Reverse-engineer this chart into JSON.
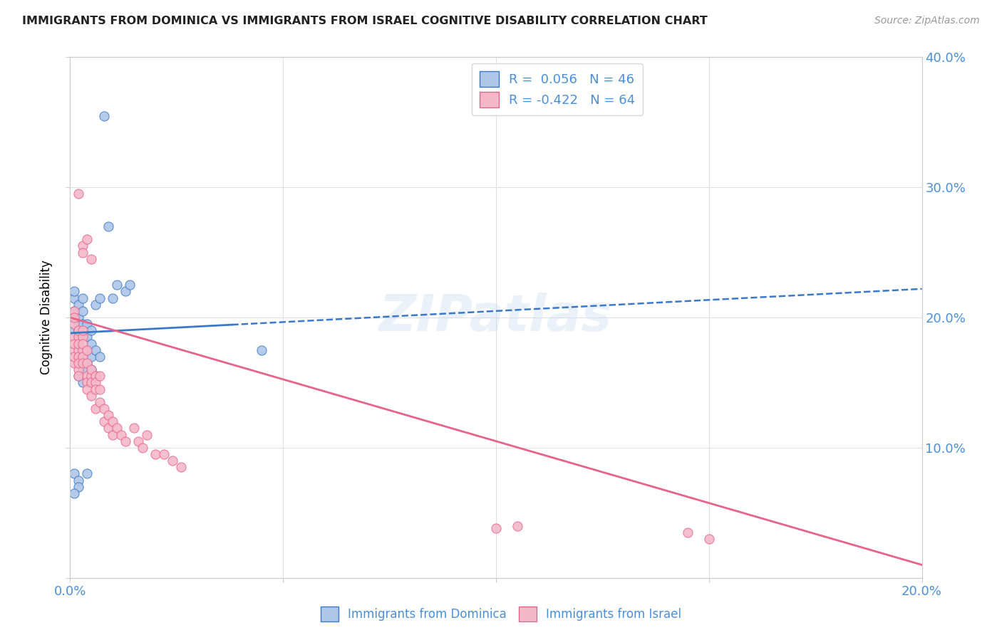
{
  "title": "IMMIGRANTS FROM DOMINICA VS IMMIGRANTS FROM ISRAEL COGNITIVE DISABILITY CORRELATION CHART",
  "source": "Source: ZipAtlas.com",
  "ylabel": "Cognitive Disability",
  "xlim": [
    0.0,
    0.2
  ],
  "ylim": [
    0.0,
    0.4
  ],
  "dominica_color": "#aec6e8",
  "israel_color": "#f5b8c8",
  "dominica_line_color": "#3a78c9",
  "israel_line_color": "#e8638a",
  "R_dominica": 0.056,
  "N_dominica": 46,
  "R_israel": -0.422,
  "N_israel": 64,
  "dominica_x": [
    0.001,
    0.001,
    0.001,
    0.001,
    0.001,
    0.002,
    0.002,
    0.002,
    0.002,
    0.002,
    0.002,
    0.002,
    0.003,
    0.003,
    0.003,
    0.003,
    0.003,
    0.003,
    0.004,
    0.004,
    0.004,
    0.004,
    0.005,
    0.005,
    0.005,
    0.005,
    0.006,
    0.006,
    0.007,
    0.007,
    0.008,
    0.009,
    0.01,
    0.011,
    0.013,
    0.014,
    0.003,
    0.002,
    0.003,
    0.001,
    0.002,
    0.004,
    0.006,
    0.045,
    0.002,
    0.001
  ],
  "dominica_y": [
    0.19,
    0.205,
    0.215,
    0.22,
    0.2,
    0.185,
    0.195,
    0.2,
    0.21,
    0.175,
    0.18,
    0.19,
    0.17,
    0.175,
    0.185,
    0.195,
    0.205,
    0.215,
    0.165,
    0.175,
    0.185,
    0.195,
    0.16,
    0.17,
    0.18,
    0.19,
    0.175,
    0.21,
    0.17,
    0.215,
    0.355,
    0.27,
    0.215,
    0.225,
    0.22,
    0.225,
    0.15,
    0.155,
    0.16,
    0.08,
    0.075,
    0.08,
    0.155,
    0.175,
    0.07,
    0.065
  ],
  "israel_x": [
    0.001,
    0.001,
    0.001,
    0.001,
    0.001,
    0.001,
    0.001,
    0.001,
    0.002,
    0.002,
    0.002,
    0.002,
    0.002,
    0.002,
    0.002,
    0.002,
    0.002,
    0.003,
    0.003,
    0.003,
    0.003,
    0.003,
    0.003,
    0.003,
    0.003,
    0.004,
    0.004,
    0.004,
    0.004,
    0.004,
    0.004,
    0.005,
    0.005,
    0.005,
    0.005,
    0.005,
    0.006,
    0.006,
    0.006,
    0.006,
    0.007,
    0.007,
    0.007,
    0.008,
    0.008,
    0.009,
    0.009,
    0.01,
    0.01,
    0.011,
    0.012,
    0.013,
    0.015,
    0.016,
    0.017,
    0.018,
    0.02,
    0.022,
    0.024,
    0.026,
    0.1,
    0.105,
    0.145,
    0.15
  ],
  "israel_y": [
    0.195,
    0.185,
    0.205,
    0.175,
    0.165,
    0.2,
    0.18,
    0.17,
    0.295,
    0.185,
    0.19,
    0.175,
    0.18,
    0.17,
    0.16,
    0.165,
    0.155,
    0.255,
    0.25,
    0.185,
    0.175,
    0.17,
    0.165,
    0.18,
    0.19,
    0.26,
    0.175,
    0.155,
    0.15,
    0.165,
    0.145,
    0.245,
    0.155,
    0.15,
    0.14,
    0.16,
    0.155,
    0.15,
    0.145,
    0.13,
    0.155,
    0.145,
    0.135,
    0.13,
    0.12,
    0.115,
    0.125,
    0.12,
    0.11,
    0.115,
    0.11,
    0.105,
    0.115,
    0.105,
    0.1,
    0.11,
    0.095,
    0.095,
    0.09,
    0.085,
    0.038,
    0.04,
    0.035,
    0.03
  ],
  "watermark": "ZIPatlas",
  "legend_text_color": "#4a90d9",
  "grid_color": "#e0e0e0",
  "background_color": "#ffffff",
  "trend_dominica_y0": 0.188,
  "trend_dominica_y1": 0.222,
  "trend_israel_y0": 0.2,
  "trend_israel_y1": 0.01
}
